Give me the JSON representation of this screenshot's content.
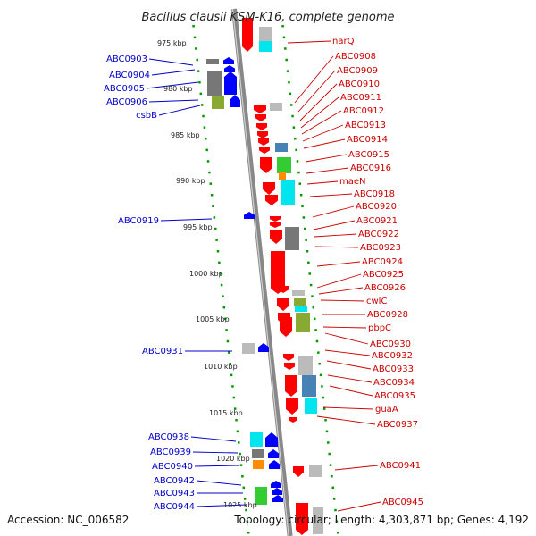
{
  "title": "Bacillus clausii KSM-K16, complete genome",
  "footer": {
    "accession": "Accession: NC_006582",
    "topology": "Topology: circular; Length: 4,303,871 bp; Genes: 4,192"
  },
  "colors": {
    "forward": "#0000ff",
    "reverse": "#ff0000",
    "forward_label": "#0000cc",
    "reverse_label": "#cc0000",
    "tick": "#009900",
    "backbone": "#888888"
  },
  "scale_labels": [
    "975 kbp",
    "980 kbp",
    "985 kbp",
    "990 kbp",
    "995 kbp",
    "1000 kbp",
    "1005 kbp",
    "1010 kbp",
    "1015 kbp",
    "1020 kbp",
    "1025 kbp"
  ],
  "forward_genes": [
    "ABC0903",
    "ABC0904",
    "ABC0905",
    "ABC0906",
    "csbB",
    "ABC0919",
    "ABC0931",
    "ABC0938",
    "ABC0939",
    "ABC0940",
    "ABC0942",
    "ABC0943",
    "ABC0944"
  ],
  "reverse_genes": [
    "narQ",
    "ABC0908",
    "ABC0909",
    "ABC0910",
    "ABC0911",
    "ABC0912",
    "ABC0913",
    "ABC0914",
    "ABC0915",
    "ABC0916",
    "maeN",
    "ABC0918",
    "ABC0920",
    "ABC0921",
    "ABC0922",
    "ABC0923",
    "ABC0924",
    "ABC0925",
    "ABC0926",
    "cwlC",
    "ABC0928",
    "pbpC",
    "ABC0930",
    "ABC0932",
    "ABC0933",
    "ABC0934",
    "ABC0935",
    "guaA",
    "ABC0937",
    "ABC0941",
    "ABC0945"
  ]
}
